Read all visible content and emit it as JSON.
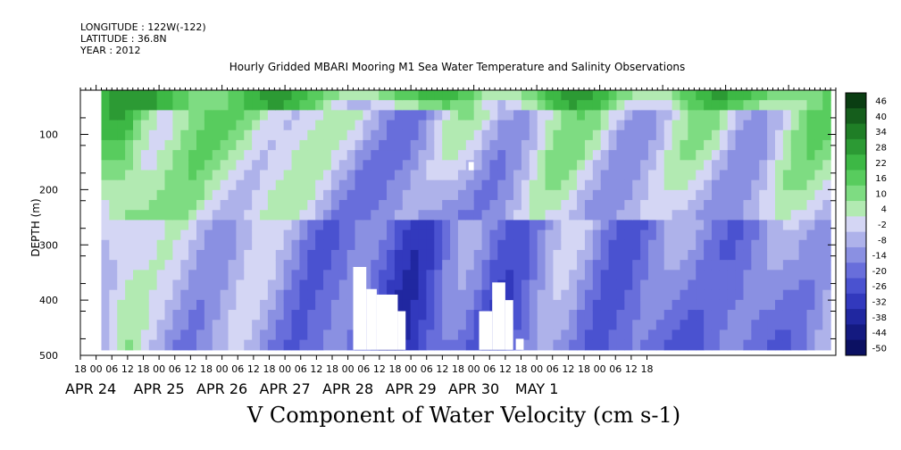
{
  "header": {
    "longitude": "LONGITUDE : 122W(-122)",
    "latitude": "LATITUDE : 36.8N",
    "year": "YEAR : 2012"
  },
  "chart_data": {
    "type": "heatmap",
    "title": "Hourly Gridded MBARI Mooring M1 Sea Water Temperature and Salinity Observations",
    "xlabel": "V Component of Water Velocity (cm s-1)",
    "ylabel": "DEPTH (m)",
    "ylim": [
      500,
      20
    ],
    "y_ticks": [
      100,
      200,
      300,
      400,
      500
    ],
    "y_tick_labels": [
      "100",
      "200",
      "300",
      "400",
      "500"
    ],
    "x_range_hours": [
      -6,
      282
    ],
    "x_hour_ticks": [
      "18",
      "00",
      "06",
      "12",
      "18",
      "00",
      "06",
      "12",
      "18",
      "00",
      "06",
      "12",
      "18",
      "00",
      "06",
      "12",
      "18",
      "00",
      "06",
      "12",
      "18",
      "00",
      "06",
      "12",
      "18",
      "00",
      "06",
      "12",
      "18",
      "00",
      "06",
      "12",
      "18",
      "00",
      "06",
      "12",
      "18"
    ],
    "x_day_labels": [
      "APR 24",
      "APR 25",
      "APR 26",
      "APR 27",
      "APR 28",
      "APR 29",
      "APR 30",
      "MAY  1"
    ],
    "colorbar": {
      "levels": [
        46,
        40,
        34,
        28,
        22,
        16,
        10,
        4,
        -2,
        -8,
        -14,
        -20,
        -26,
        -32,
        -38,
        -44,
        -50
      ],
      "colors": [
        "#0a3d12",
        "#155e1c",
        "#1f7e26",
        "#2c9a34",
        "#3db845",
        "#58cc5e",
        "#7edc82",
        "#b2eab2",
        "#d4d6f4",
        "#aeb2ea",
        "#8a90e2",
        "#686edb",
        "#4a52d0",
        "#3239bd",
        "#2027a0",
        "#141a80",
        "#0b1062"
      ]
    },
    "bands_top_to_bottom": [
      {
        "depth_m": [
          20,
          60
        ],
        "dominant": "strong northward (10 to 40)"
      },
      {
        "depth_m": [
          60,
          250
        ],
        "dominant": "mixed, weak northward (4 to 22) with southward patches"
      },
      {
        "depth_m": [
          250,
          490
        ],
        "dominant": "southward (-2 to -32)"
      }
    ]
  }
}
